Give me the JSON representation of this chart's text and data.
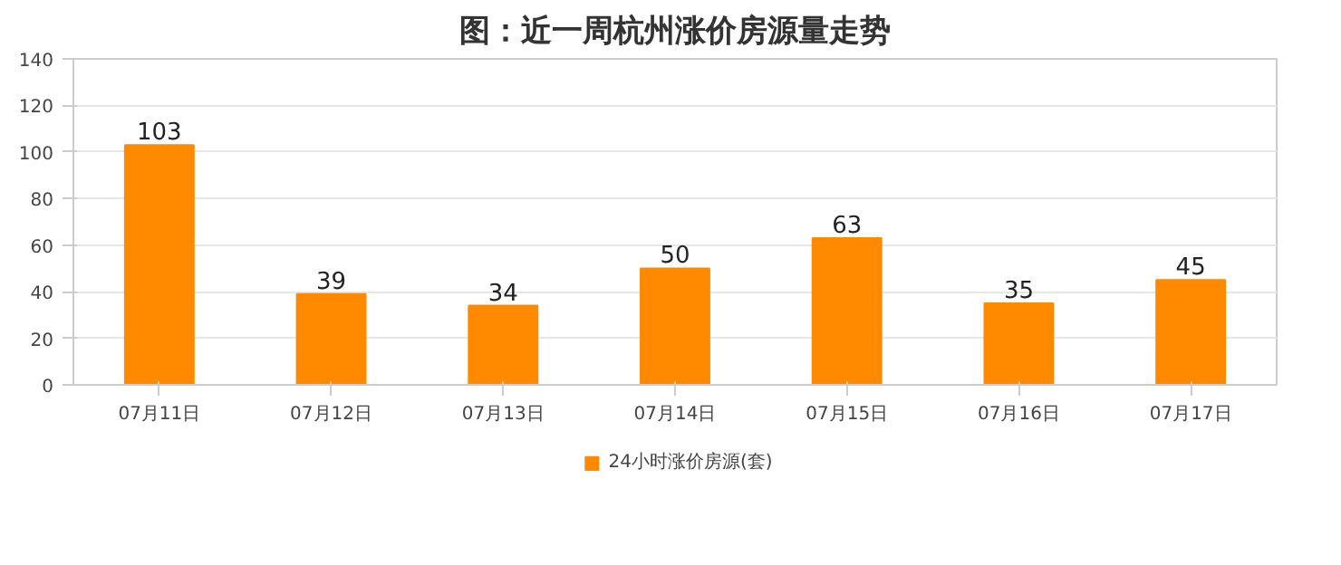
{
  "chart_data": {
    "type": "bar",
    "title": "图：近一周杭州涨价房源量走势",
    "categories": [
      "07月11日",
      "07月12日",
      "07月13日",
      "07月14日",
      "07月15日",
      "07月16日",
      "07月17日"
    ],
    "series": [
      {
        "name": "24小时涨价房源(套)",
        "color": "#ff8a00",
        "values": [
          103,
          39,
          34,
          50,
          63,
          35,
          45
        ]
      }
    ],
    "ylim": [
      0,
      140
    ],
    "yticks": [
      0,
      20,
      40,
      60,
      80,
      100,
      120,
      140
    ],
    "grid": "y",
    "legend": "bottom",
    "data_labels": true
  }
}
